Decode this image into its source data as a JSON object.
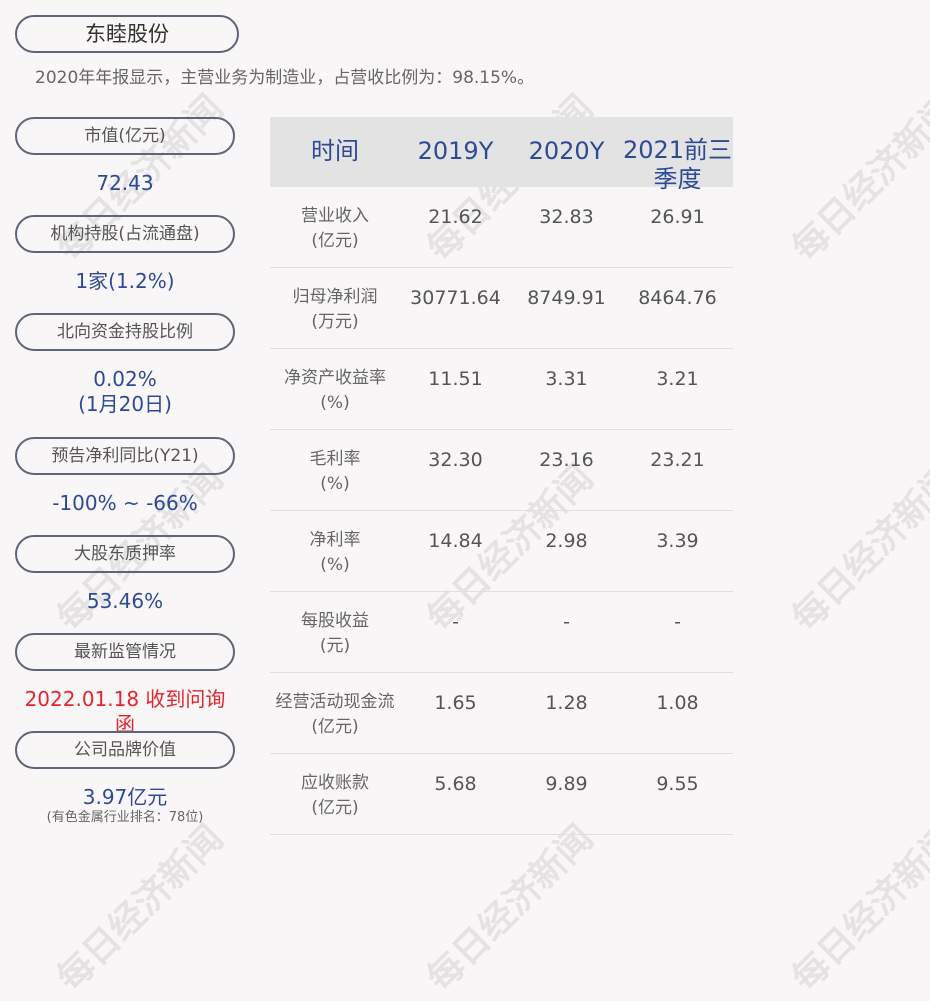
{
  "title": "东睦股份",
  "description": "2020年年报显示，主营业务为制造业，占营收比例为：98.15%。",
  "watermark": "每日经济新闻",
  "metrics": [
    {
      "label": "市值(亿元)",
      "value": "72.43"
    },
    {
      "label": "机构持股(占流通盘)",
      "value": "1家(1.2%)"
    },
    {
      "label": "北向资金持股比例",
      "value": "0.02%",
      "value2": "(1月20日)"
    },
    {
      "label": "预告净利同比(Y21)",
      "value": "-100% ~ -66%"
    },
    {
      "label": "大股东质押率",
      "value": "53.46%"
    },
    {
      "label": "最新监管情况",
      "value": "2022.01.18 收到问询函"
    },
    {
      "label": "公司品牌价值",
      "value": "3.97亿元",
      "note": "(有色金属行业排名：78位)"
    }
  ],
  "table": {
    "headers": [
      "时间",
      "2019Y",
      "2020Y",
      "2021前三季度"
    ],
    "rows": [
      {
        "label": "营业收入",
        "unit": "(亿元)",
        "values": [
          "21.62",
          "32.83",
          "26.91"
        ]
      },
      {
        "label": "归母净利润",
        "unit": "(万元)",
        "values": [
          "30771.64",
          "8749.91",
          "8464.76"
        ]
      },
      {
        "label": "净资产收益率",
        "unit": "(%)",
        "values": [
          "11.51",
          "3.31",
          "3.21"
        ]
      },
      {
        "label": "毛利率",
        "unit": "(%)",
        "values": [
          "32.30",
          "23.16",
          "23.21"
        ]
      },
      {
        "label": "净利率",
        "unit": "(%)",
        "values": [
          "14.84",
          "2.98",
          "3.39"
        ]
      },
      {
        "label": "每股收益",
        "unit": "(元)",
        "values": [
          "-",
          "-",
          "-"
        ]
      },
      {
        "label": "经营活动现金流",
        "unit": "(亿元)",
        "values": [
          "1.65",
          "1.28",
          "1.08"
        ]
      },
      {
        "label": "应收账款",
        "unit": "(亿元)",
        "values": [
          "5.68",
          "9.89",
          "9.55"
        ]
      }
    ]
  },
  "colors": {
    "accent": "#2e4a94",
    "alert": "#e3262b",
    "header_bg": "#e3e3e3"
  }
}
